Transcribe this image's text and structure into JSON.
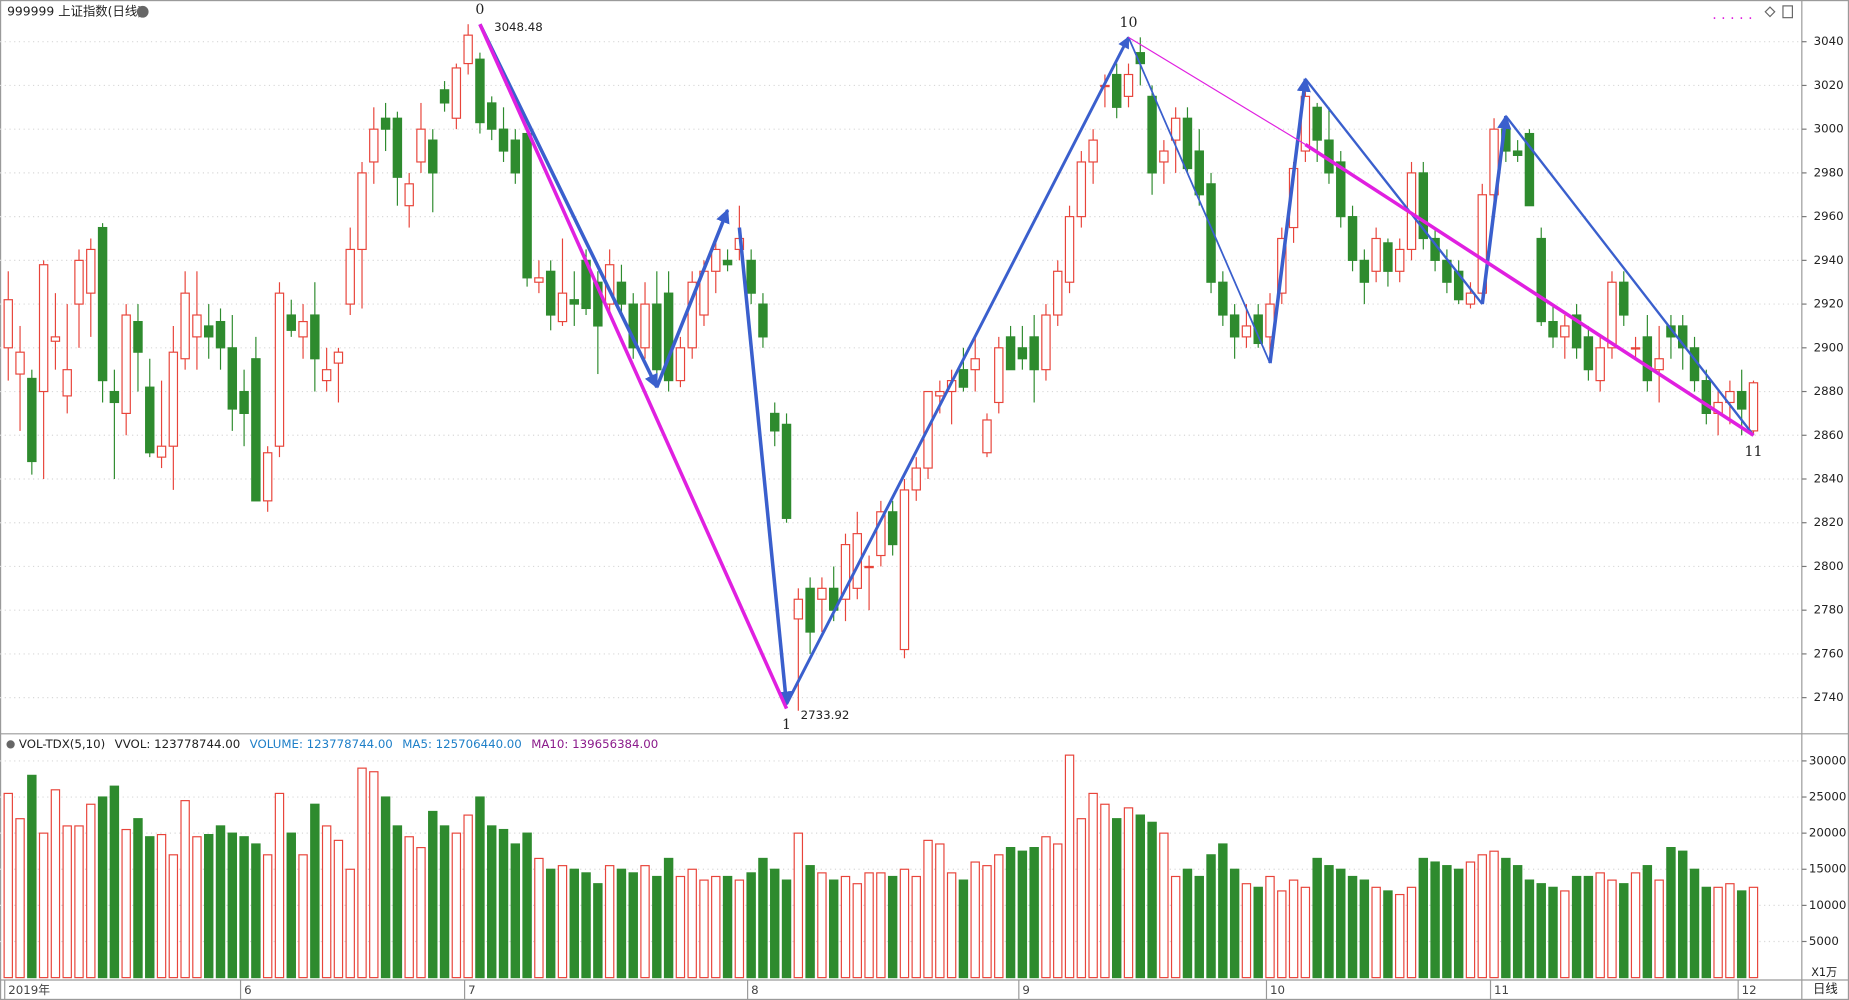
{
  "chart_data": {
    "type": "candlestick",
    "title": "999999 上证指数(日线)",
    "period_label": "日线",
    "volume_unit": "X1万",
    "up_color": "#e8443a",
    "down_color": "#2e8b2e",
    "grid": true,
    "xlabels": [
      {
        "index": 0,
        "label": "2019年"
      },
      {
        "index": 20,
        "label": "6"
      },
      {
        "index": 39,
        "label": "7"
      },
      {
        "index": 63,
        "label": "8"
      },
      {
        "index": 86,
        "label": "9"
      },
      {
        "index": 107,
        "label": "10"
      },
      {
        "index": 126,
        "label": "11"
      },
      {
        "index": 147,
        "label": "12"
      }
    ],
    "ylim": [
      2724,
      3058
    ],
    "yticks": [
      2740,
      2760,
      2780,
      2800,
      2820,
      2840,
      2860,
      2880,
      2900,
      2920,
      2940,
      2960,
      2980,
      3000,
      3020,
      3040
    ],
    "open": [
      2900,
      2888,
      2886,
      2880,
      2903,
      2878,
      2920,
      2925,
      2955,
      2880,
      2870,
      2912,
      2882,
      2850,
      2855,
      2895,
      2905,
      2910,
      2912,
      2900,
      2880,
      2895,
      2830,
      2855,
      2915,
      2905,
      2915,
      2885,
      2893,
      2920,
      2945,
      2985,
      3005,
      3005,
      2965,
      2985,
      2995,
      3018,
      3005,
      3030,
      3032,
      3012,
      3000,
      2995,
      2998,
      2930,
      2935,
      2912,
      2922,
      2940,
      2930,
      2920,
      2930,
      2920,
      2900,
      2920,
      2925,
      2885,
      2900,
      2915,
      2935,
      2940,
      2945,
      2940,
      2920,
      2870,
      2865,
      2776,
      2790,
      2785,
      2790,
      2785,
      2790,
      2800,
      2805,
      2825,
      2762,
      2835,
      2845,
      2878,
      2880,
      2890,
      2890,
      2852,
      2875,
      2905,
      2900,
      2905,
      2890,
      2915,
      2930,
      2960,
      2985,
      3020,
      3025,
      3015,
      3035,
      3015,
      2985,
      2995,
      3005,
      2990,
      2975,
      2930,
      2915,
      2905,
      2915,
      2905,
      2925,
      2955,
      2990,
      3010,
      2995,
      2985,
      2960,
      2940,
      2935,
      2948,
      2935,
      2945,
      2980,
      2950,
      2940,
      2935,
      2920,
      2925,
      2970,
      3000,
      2990,
      2998,
      2950,
      2912,
      2905,
      2915,
      2905,
      2885,
      2900,
      2930,
      2900,
      2905,
      2890,
      2910,
      2910,
      2900,
      2885,
      2870,
      2875,
      2880,
      2862
    ],
    "high": [
      2935,
      2910,
      2890,
      2940,
      2925,
      2920,
      2945,
      2950,
      2957,
      2890,
      2920,
      2920,
      2895,
      2885,
      2910,
      2935,
      2935,
      2920,
      2918,
      2915,
      2890,
      2905,
      2855,
      2930,
      2922,
      2920,
      2930,
      2900,
      2900,
      2955,
      2985,
      3010,
      3012,
      3008,
      2980,
      3012,
      3000,
      3022,
      3030,
      3048,
      3035,
      3015,
      3010,
      3000,
      3000,
      2940,
      2940,
      2950,
      2935,
      2945,
      2935,
      2945,
      2938,
      2925,
      2930,
      2935,
      2935,
      2905,
      2935,
      2940,
      2948,
      2945,
      2965,
      2945,
      2925,
      2875,
      2870,
      2790,
      2795,
      2795,
      2800,
      2815,
      2825,
      2805,
      2830,
      2830,
      2840,
      2850,
      2880,
      2885,
      2890,
      2900,
      2905,
      2870,
      2905,
      2910,
      2910,
      2915,
      2920,
      2940,
      2965,
      2990,
      3000,
      3025,
      3030,
      3030,
      3042,
      3020,
      2995,
      3010,
      3010,
      3000,
      2980,
      2935,
      2920,
      2920,
      2920,
      2925,
      2955,
      2985,
      3020,
      3012,
      3010,
      2990,
      2965,
      2945,
      2955,
      2950,
      2950,
      2985,
      2985,
      2955,
      2945,
      2940,
      2930,
      2975,
      3005,
      3005,
      2995,
      3000,
      2955,
      2920,
      2915,
      2920,
      2910,
      2905,
      2935,
      2935,
      2905,
      2915,
      2910,
      2915,
      2915,
      2905,
      2890,
      2880,
      2885,
      2890,
      2885
    ],
    "low": [
      2885,
      2862,
      2842,
      2840,
      2890,
      2870,
      2900,
      2905,
      2875,
      2840,
      2860,
      2880,
      2850,
      2845,
      2835,
      2890,
      2890,
      2895,
      2890,
      2862,
      2855,
      2830,
      2825,
      2850,
      2905,
      2895,
      2880,
      2880,
      2875,
      2915,
      2918,
      2975,
      2990,
      2965,
      2955,
      2980,
      2962,
      3008,
      3000,
      3025,
      2998,
      2995,
      2985,
      2975,
      2928,
      2925,
      2908,
      2910,
      2910,
      2915,
      2888,
      2915,
      2915,
      2895,
      2895,
      2885,
      2880,
      2882,
      2895,
      2910,
      2925,
      2935,
      2940,
      2920,
      2900,
      2855,
      2820,
      2734,
      2760,
      2770,
      2775,
      2775,
      2785,
      2780,
      2800,
      2805,
      2758,
      2830,
      2840,
      2870,
      2865,
      2880,
      2880,
      2850,
      2870,
      2890,
      2890,
      2875,
      2885,
      2910,
      2925,
      2955,
      2975,
      3010,
      3005,
      3010,
      3020,
      2970,
      2975,
      2980,
      2980,
      2965,
      2925,
      2910,
      2895,
      2900,
      2900,
      2895,
      2920,
      2948,
      2985,
      2985,
      2975,
      2955,
      2935,
      2920,
      2930,
      2928,
      2930,
      2940,
      2945,
      2935,
      2925,
      2920,
      2918,
      2920,
      2965,
      2985,
      2985,
      2965,
      2910,
      2900,
      2895,
      2895,
      2885,
      2880,
      2895,
      2910,
      2895,
      2880,
      2875,
      2895,
      2890,
      2880,
      2865,
      2860,
      2865,
      2860,
      2860
    ],
    "close": [
      2922,
      2898,
      2848,
      2938,
      2905,
      2890,
      2940,
      2945,
      2885,
      2875,
      2915,
      2898,
      2852,
      2855,
      2898,
      2925,
      2915,
      2905,
      2900,
      2872,
      2870,
      2830,
      2852,
      2925,
      2908,
      2912,
      2895,
      2890,
      2898,
      2945,
      2980,
      3000,
      3000,
      2978,
      2975,
      3000,
      2980,
      3012,
      3028,
      3043,
      3003,
      3000,
      2990,
      2980,
      2932,
      2932,
      2915,
      2925,
      2920,
      2918,
      2910,
      2938,
      2920,
      2900,
      2920,
      2890,
      2885,
      2900,
      2930,
      2935,
      2945,
      2938,
      2950,
      2925,
      2905,
      2862,
      2822,
      2785,
      2770,
      2790,
      2780,
      2810,
      2815,
      2800,
      2825,
      2810,
      2835,
      2845,
      2880,
      2880,
      2885,
      2882,
      2895,
      2867,
      2900,
      2890,
      2895,
      2890,
      2915,
      2935,
      2960,
      2985,
      2995,
      3020,
      3010,
      3025,
      3030,
      2980,
      2990,
      3005,
      2982,
      2970,
      2930,
      2915,
      2905,
      2910,
      2902,
      2920,
      2950,
      2982,
      3015,
      2995,
      2980,
      2960,
      2940,
      2930,
      2950,
      2935,
      2945,
      2980,
      2950,
      2940,
      2930,
      2922,
      2925,
      2970,
      3000,
      2990,
      2988,
      2965,
      2912,
      2905,
      2910,
      2900,
      2890,
      2900,
      2930,
      2915,
      2900,
      2885,
      2895,
      2905,
      2900,
      2885,
      2870,
      2875,
      2880,
      2872,
      2884
    ],
    "volume": [
      25500,
      22000,
      28000,
      20000,
      26000,
      21000,
      21000,
      24000,
      25000,
      26500,
      20500,
      22000,
      19500,
      19800,
      17000,
      24500,
      19500,
      19800,
      21000,
      20000,
      19500,
      18500,
      17000,
      25500,
      20000,
      17000,
      24000,
      21000,
      19000,
      15000,
      29000,
      28500,
      25000,
      21000,
      19500,
      18000,
      23000,
      21000,
      20000,
      22500,
      25000,
      21000,
      20500,
      18500,
      20000,
      16500,
      15000,
      15500,
      15000,
      14500,
      13000,
      15500,
      15000,
      14500,
      15500,
      14000,
      16500,
      14000,
      15000,
      13500,
      14000,
      14000,
      13500,
      14500,
      16500,
      15000,
      13500,
      20000,
      15500,
      14500,
      13500,
      14000,
      13000,
      14500,
      14500,
      14000,
      15000,
      14000,
      19000,
      18500,
      14500,
      13500,
      16000,
      15500,
      17000,
      18000,
      17500,
      18000,
      19500,
      18500,
      30800,
      22000,
      25500,
      24000,
      22000,
      23500,
      22500,
      21500,
      20000,
      14000,
      15000,
      14000,
      17000,
      18500,
      15000,
      13000,
      12500,
      14000,
      12000,
      13500,
      12500,
      16500,
      15500,
      15000,
      14000,
      13500,
      12500,
      12000,
      11500,
      12500,
      16500,
      16000,
      15500,
      15000,
      16000,
      17000,
      17500,
      16500,
      15500,
      13500,
      13000,
      12500,
      12000,
      14000,
      14000,
      14500,
      13500,
      13000,
      14500,
      15500,
      13500,
      18000,
      17500,
      15000,
      12500,
      12500,
      13000,
      12000,
      12500
    ],
    "vlim": [
      0,
      33100
    ],
    "vticks": [
      5000,
      10000,
      15000,
      20000,
      25000,
      30000
    ],
    "volume_header": [
      {
        "text": "VOL-TDX(5,10)",
        "color": "#222222"
      },
      {
        "text": "VVOL: 123778744.00",
        "color": "#222222"
      },
      {
        "text": "VOLUME: 123778744.00",
        "color": "#1e7fc8"
      },
      {
        "text": "MA5: 125706440.00",
        "color": "#1e7fc8"
      },
      {
        "text": "MA10: 139656384.00",
        "color": "#8b1a8b"
      }
    ],
    "waves": [
      {
        "points": [
          [
            40,
            3048
          ],
          [
            55,
            2882
          ]
        ],
        "color": "#3a5fcd",
        "width": 3
      },
      {
        "points": [
          [
            55,
            2882
          ],
          [
            61,
            2963
          ]
        ],
        "color": "#3a5fcd",
        "width": 3
      },
      {
        "points": [
          [
            62,
            2955
          ],
          [
            66,
            2737
          ]
        ],
        "color": "#3a5fcd",
        "width": 3
      },
      {
        "points": [
          [
            66,
            2737
          ],
          [
            95,
            3042
          ]
        ],
        "color": "#3a5fcd",
        "width": 2.5
      },
      {
        "points": [
          [
            95,
            3042
          ],
          [
            107,
            2893
          ]
        ],
        "color": "#3a5fcd",
        "width": 1.5
      },
      {
        "points": [
          [
            107,
            2893
          ],
          [
            110,
            3023
          ]
        ],
        "color": "#3a5fcd",
        "width": 3
      },
      {
        "points": [
          [
            110,
            3023
          ],
          [
            125,
            2920
          ]
        ],
        "color": "#3a5fcd",
        "width": 2
      },
      {
        "points": [
          [
            125,
            2920
          ],
          [
            127,
            3006
          ]
        ],
        "color": "#3a5fcd",
        "width": 3
      },
      {
        "points": [
          [
            127,
            3006
          ],
          [
            148,
            2860
          ]
        ],
        "color": "#3a5fcd",
        "width": 2
      },
      {
        "points": [
          [
            40,
            3048
          ],
          [
            66,
            2735
          ]
        ],
        "color": "#e020e0",
        "width": 3
      },
      {
        "points": [
          [
            95,
            3042
          ],
          [
            110,
            2993
          ]
        ],
        "color": "#e020e0",
        "width": 1
      },
      {
        "points": [
          [
            110,
            2993
          ],
          [
            148,
            2860
          ]
        ],
        "color": "#e020e0",
        "width": 3
      }
    ],
    "point_labels": [
      {
        "index": 40,
        "value": 3048,
        "label": "0",
        "pos": "above"
      },
      {
        "index": 66,
        "value": 2735,
        "label": "1",
        "pos": "below"
      },
      {
        "index": 95,
        "value": 3042,
        "label": "10",
        "pos": "above"
      },
      {
        "index": 148,
        "value": 2860,
        "label": "11",
        "pos": "below"
      }
    ],
    "price_notes": [
      {
        "index": 40,
        "value": 3048,
        "label": "3048.48"
      },
      {
        "index": 66,
        "value": 2734,
        "label": "2733.92"
      }
    ]
  }
}
